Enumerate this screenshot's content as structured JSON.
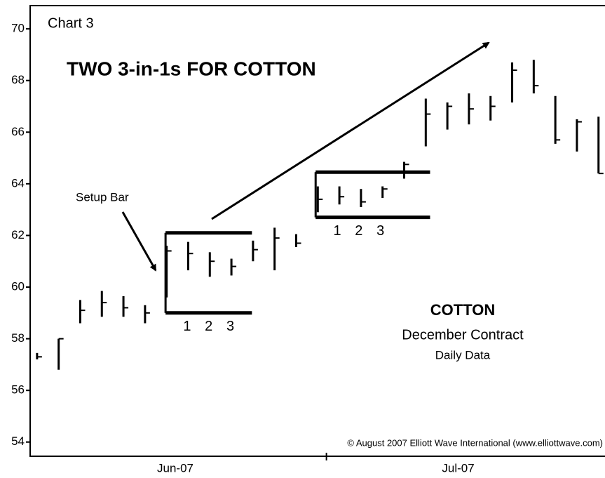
{
  "chart_data": {
    "type": "ohlc",
    "label": "Chart 3",
    "title": "TWO 3-in-1s FOR COTTON",
    "annotations": {
      "setup": "Setup Bar",
      "commodity": "COTTON",
      "contract": "December Contract",
      "data": "Daily Data",
      "copyright": "© August 2007 Elliott Wave International (www.elliottwave.com)"
    },
    "box_labels": [
      [
        "1",
        "2",
        "3"
      ],
      [
        "1",
        "2",
        "3"
      ]
    ],
    "color": "#000000",
    "x": [
      0,
      1,
      2,
      3,
      4,
      5,
      6,
      7,
      8,
      9,
      10,
      11,
      12,
      13,
      14,
      15,
      16,
      17,
      18,
      19,
      20,
      21,
      22,
      23,
      24,
      25,
      26
    ],
    "high": [
      57.45,
      58.0,
      59.5,
      59.85,
      59.65,
      59.3,
      61.6,
      61.75,
      61.35,
      61.1,
      61.8,
      62.3,
      62.05,
      63.9,
      63.9,
      63.8,
      63.9,
      64.85,
      67.3,
      67.15,
      67.5,
      67.4,
      68.7,
      68.8,
      67.4,
      66.5,
      66.6
    ],
    "low": [
      57.2,
      56.8,
      58.6,
      58.85,
      58.85,
      58.6,
      59.6,
      60.65,
      60.4,
      60.45,
      61.0,
      60.65,
      61.55,
      62.9,
      63.2,
      63.1,
      63.45,
      64.2,
      65.45,
      66.1,
      66.3,
      66.45,
      67.15,
      67.5,
      65.55,
      65.25,
      64.4
    ],
    "close": [
      57.3,
      58.0,
      59.1,
      59.4,
      59.2,
      59.0,
      61.4,
      61.3,
      61.0,
      60.8,
      61.45,
      61.9,
      61.7,
      63.4,
      63.5,
      63.3,
      63.8,
      64.75,
      66.7,
      67.0,
      66.9,
      67.0,
      68.4,
      67.8,
      65.7,
      66.4,
      64.4
    ],
    "boxes": [
      {
        "top": 62.1,
        "bottom": 59.0,
        "from": 5.95,
        "to": 9.95
      },
      {
        "top": 64.45,
        "bottom": 62.7,
        "from": 12.9,
        "to": 18.2
      }
    ],
    "xlim": [
      -0.32,
      26.3
    ],
    "xticks": [
      {
        "value": 6.4,
        "label": "Jun-07"
      },
      {
        "value": 19.5,
        "label": "Jul-07"
      }
    ],
    "xtick_marks": [
      13.4
    ],
    "ylim": [
      53.45,
      70.9
    ],
    "yticks": [
      54,
      56,
      58,
      60,
      62,
      64,
      66,
      68,
      70
    ]
  }
}
